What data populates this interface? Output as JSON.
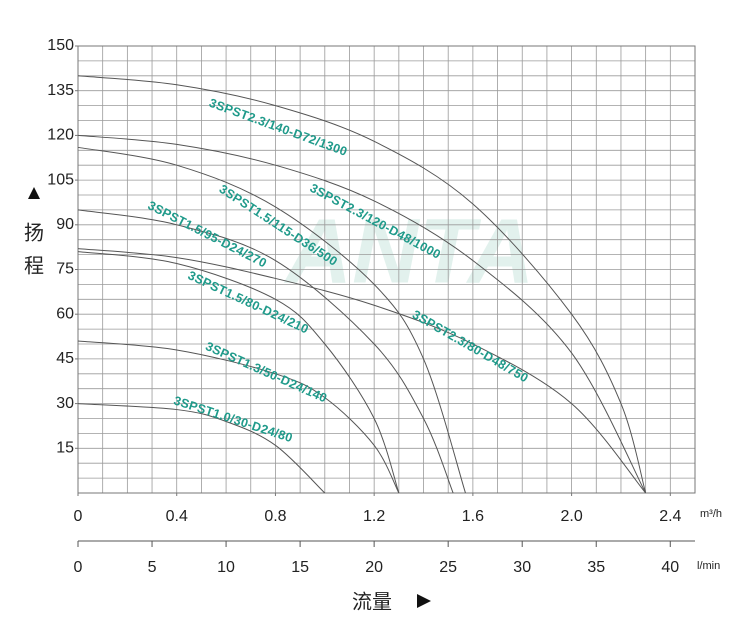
{
  "chart_data": {
    "type": "line",
    "xlim": [
      0,
      2.5
    ],
    "xticks": [
      0,
      0.4,
      0.8,
      1.2,
      1.6,
      2.0,
      2.4
    ],
    "x_unit": "m³/h",
    "x2lim": [
      0,
      41.67
    ],
    "x2ticks": [
      0,
      5,
      10,
      15,
      20,
      25,
      30,
      35,
      40
    ],
    "x2_unit": "l/min",
    "ylim": [
      0,
      150
    ],
    "yticks": [
      15,
      30,
      45,
      60,
      75,
      90,
      105,
      120,
      135,
      150
    ],
    "y_label": [
      "扬",
      "程"
    ],
    "x_label": "流量",
    "watermark": "ANTA",
    "grid": {
      "x_step": 0.1,
      "y_step": 5
    },
    "curve_color": "#555555",
    "label_color": "#1f9a8a",
    "series": [
      {
        "name": "3SPST2.3/140-D72/1300",
        "x": [
          0,
          0.4,
          0.8,
          1.2,
          1.6,
          2.0,
          2.2,
          2.3
        ],
        "values": [
          140,
          137,
          130,
          118,
          97,
          60,
          30,
          0
        ]
      },
      {
        "name": "3SPST2.3/120-D48/1000",
        "x": [
          0,
          0.4,
          0.8,
          1.2,
          1.6,
          2.0,
          2.3
        ],
        "values": [
          120,
          117,
          110,
          98,
          78,
          47,
          0
        ]
      },
      {
        "name": "3SPST1.5/115-D36/500",
        "x": [
          0,
          0.4,
          0.8,
          1.2,
          1.4,
          1.57
        ],
        "values": [
          116,
          110,
          96,
          70,
          45,
          0
        ]
      },
      {
        "name": "3SPST1.5/95-D24/270",
        "x": [
          0,
          0.4,
          0.8,
          1.2,
          1.4,
          1.52
        ],
        "values": [
          95,
          90,
          78,
          50,
          25,
          0
        ]
      },
      {
        "name": "3SPST1.5/80-D24/210",
        "x": [
          0,
          0.4,
          0.8,
          1.0,
          1.2,
          1.3
        ],
        "values": [
          81,
          77,
          65,
          50,
          25,
          0
        ]
      },
      {
        "name": "3SPST2.3/80-D48/750",
        "x": [
          0,
          0.4,
          0.8,
          1.2,
          1.6,
          2.0,
          2.3
        ],
        "values": [
          82,
          79,
          72,
          63,
          50,
          30,
          0
        ]
      },
      {
        "name": "3SPST1.3/50-D24/140",
        "x": [
          0,
          0.4,
          0.8,
          1.0,
          1.2,
          1.3
        ],
        "values": [
          51,
          48,
          40,
          32,
          16,
          0
        ]
      },
      {
        "name": "3SPST1.0/30-D24/80",
        "x": [
          0,
          0.4,
          0.6,
          0.8,
          1.0
        ],
        "values": [
          30,
          28,
          24,
          16,
          0
        ]
      }
    ]
  }
}
